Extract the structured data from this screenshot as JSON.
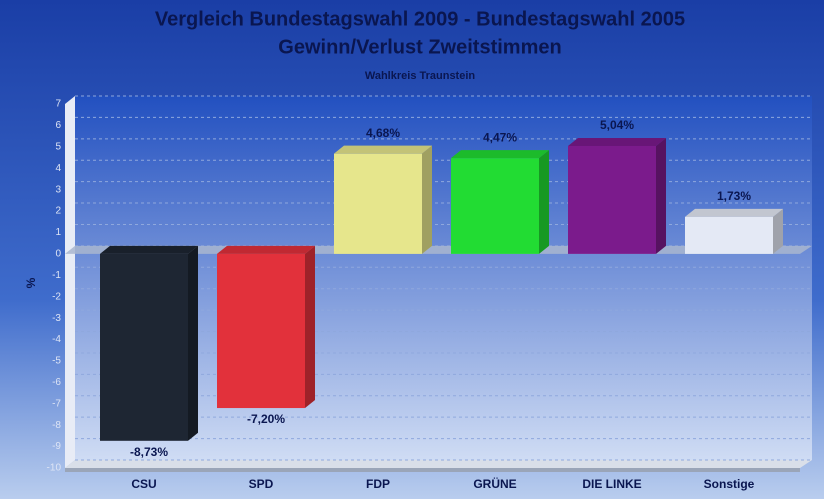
{
  "chart_data": {
    "type": "bar",
    "title_lines": [
      "Vergleich Bundestagswahl 2009 - Bundestagswahl 2005",
      "Gewinn/Verlust Zweitstimmen"
    ],
    "subtitle": "Wahlkreis Traunstein",
    "ylabel": "%",
    "categories": [
      "CSU",
      "SPD",
      "FDP",
      "GRÜNE",
      "DIE LINKE",
      "Sonstige"
    ],
    "values": [
      -8.73,
      -7.2,
      4.68,
      4.47,
      5.04,
      1.73
    ],
    "value_labels": [
      "-8,73%",
      "-7,20%",
      "4,68%",
      "4,47%",
      "5,04%",
      "1,73%"
    ],
    "colors": [
      "#1e2633",
      "#e2313b",
      "#e6e68c",
      "#22dc33",
      "#7b1b8c",
      "#e4e9f5"
    ],
    "ylim": [
      -10,
      7
    ],
    "yticks": [
      7,
      6,
      5,
      4,
      3,
      2,
      1,
      0,
      -1,
      -2,
      -3,
      -4,
      -5,
      -6,
      -7,
      -8,
      -9,
      -10
    ],
    "grid": true
  }
}
